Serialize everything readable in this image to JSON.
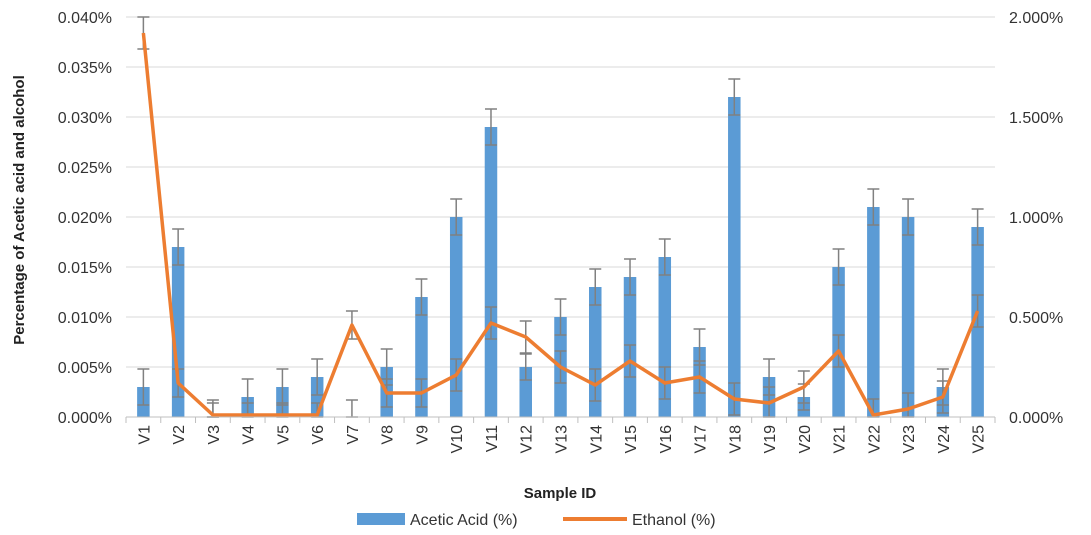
{
  "chart_data": {
    "type": "bar",
    "title": "",
    "xlabel": "Sample ID",
    "ylabel": "Percentage of Acetic acid and alcohol",
    "categories": [
      "V1",
      "V2",
      "V3",
      "V4",
      "V5",
      "V6",
      "V7",
      "V8",
      "V9",
      "V10",
      "V11",
      "V12",
      "V13",
      "V14",
      "V15",
      "V16",
      "V17",
      "V18",
      "V19",
      "V20",
      "V21",
      "V22",
      "V23",
      "V24",
      "V25"
    ],
    "ylim": [
      0,
      0.04
    ],
    "y2lim": [
      0,
      2.0
    ],
    "y_ticks": [
      "0.000%",
      "0.005%",
      "0.010%",
      "0.015%",
      "0.020%",
      "0.025%",
      "0.030%",
      "0.035%",
      "0.040%"
    ],
    "y2_ticks": [
      "0.000%",
      "0.500%",
      "1.000%",
      "1.500%",
      "2.000%"
    ],
    "grid": true,
    "legend_position": "bottom",
    "series": [
      {
        "name": "Acetic Acid (%)",
        "type": "bar",
        "axis": "left",
        "color": "#5B9BD5",
        "values": [
          0.003,
          0.017,
          0.0,
          0.002,
          0.003,
          0.004,
          0.0,
          0.005,
          0.012,
          0.02,
          0.029,
          0.005,
          0.01,
          0.013,
          0.014,
          0.016,
          0.007,
          0.032,
          0.004,
          0.002,
          0.015,
          0.021,
          0.02,
          0.003,
          0.019
        ],
        "errors": [
          0.0018,
          0.0018,
          0.0017,
          0.0018,
          0.0018,
          0.0018,
          0.0017,
          0.0018,
          0.0018,
          0.0018,
          0.0018,
          0.0013,
          0.0018,
          0.0018,
          0.0018,
          0.0018,
          0.0018,
          0.0018,
          0.0018,
          0.0013,
          0.0018,
          0.0018,
          0.0018,
          0.0018,
          0.0018
        ]
      },
      {
        "name": "Ethanol (%)",
        "type": "line",
        "axis": "right",
        "color": "#ED7D31",
        "values": [
          1.92,
          0.17,
          0.01,
          0.01,
          0.01,
          0.01,
          0.46,
          0.12,
          0.12,
          0.21,
          0.47,
          0.4,
          0.25,
          0.16,
          0.28,
          0.17,
          0.2,
          0.09,
          0.07,
          0.15,
          0.33,
          0.01,
          0.04,
          0.1,
          0.53
        ],
        "errors": [
          0.08,
          0.07,
          0.06,
          0.06,
          0.06,
          0.06,
          0.07,
          0.07,
          0.07,
          0.08,
          0.08,
          0.08,
          0.08,
          0.08,
          0.08,
          0.08,
          0.08,
          0.08,
          0.08,
          0.08,
          0.08,
          0.08,
          0.08,
          0.08,
          0.08
        ]
      }
    ]
  }
}
